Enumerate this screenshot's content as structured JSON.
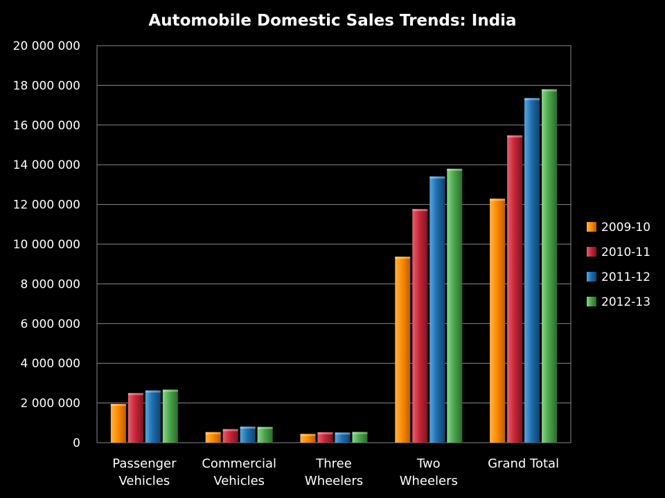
{
  "chart_data": {
    "type": "bar",
    "title": "Automobile Domestic Sales Trends: India",
    "xlabel": "",
    "ylabel": "",
    "ylim": [
      0,
      20000000
    ],
    "yticks": [
      0,
      2000000,
      4000000,
      6000000,
      8000000,
      10000000,
      12000000,
      14000000,
      16000000,
      18000000,
      20000000
    ],
    "ytick_labels": [
      "0",
      "2 000 000",
      "4 000 000",
      "6 000 000",
      "8 000 000",
      "10 000 000",
      "12 000 000",
      "14 000 000",
      "16 000 000",
      "18 000 000",
      "20 000 000"
    ],
    "categories": [
      [
        "Passenger",
        "Vehicles"
      ],
      [
        "Commercial",
        "Vehicles"
      ],
      [
        "Three",
        "Wheelers"
      ],
      [
        "Two",
        "Wheelers"
      ],
      [
        "Grand Total"
      ]
    ],
    "series": [
      {
        "name": "2009-10",
        "color": "#FF8C00",
        "values": [
          1950000,
          532000,
          440000,
          9370000,
          12290000
        ]
      },
      {
        "name": "2010-11",
        "color": "#C8283A",
        "values": [
          2500000,
          684000,
          526000,
          11770000,
          15480000
        ]
      },
      {
        "name": "2011-12",
        "color": "#1F6FB0",
        "values": [
          2630000,
          809000,
          513000,
          13410000,
          17360000
        ]
      },
      {
        "name": "2012-13",
        "color": "#4CA64C",
        "values": [
          2670000,
          793000,
          538000,
          13800000,
          17800000
        ]
      }
    ],
    "grid": true,
    "legend": "right"
  }
}
